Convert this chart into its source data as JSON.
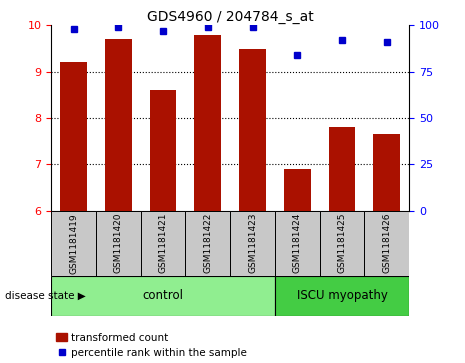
{
  "title": "GDS4960 / 204784_s_at",
  "samples": [
    "GSM1181419",
    "GSM1181420",
    "GSM1181421",
    "GSM1181422",
    "GSM1181423",
    "GSM1181424",
    "GSM1181425",
    "GSM1181426"
  ],
  "bar_values": [
    9.2,
    9.7,
    8.6,
    9.8,
    9.5,
    6.9,
    7.8,
    7.65
  ],
  "percentile_values": [
    98,
    99,
    97,
    99,
    99,
    84,
    92,
    91
  ],
  "ylim_left": [
    6,
    10
  ],
  "ylim_right": [
    0,
    100
  ],
  "yticks_left": [
    6,
    7,
    8,
    9,
    10
  ],
  "yticks_right": [
    0,
    25,
    50,
    75,
    100
  ],
  "bar_color": "#aa1100",
  "percentile_color": "#0000cc",
  "n_control": 5,
  "n_iscu": 3,
  "control_label": "control",
  "iscu_label": "ISCU myopathy",
  "disease_state_label": "disease state",
  "control_bg": "#90ee90",
  "iscu_bg": "#44cc44",
  "tick_bg": "#c8c8c8",
  "legend_bar_label": "transformed count",
  "legend_pct_label": "percentile rank within the sample",
  "title_fontsize": 10,
  "tick_fontsize": 8,
  "label_fontsize": 6.5,
  "ds_fontsize": 8.5
}
